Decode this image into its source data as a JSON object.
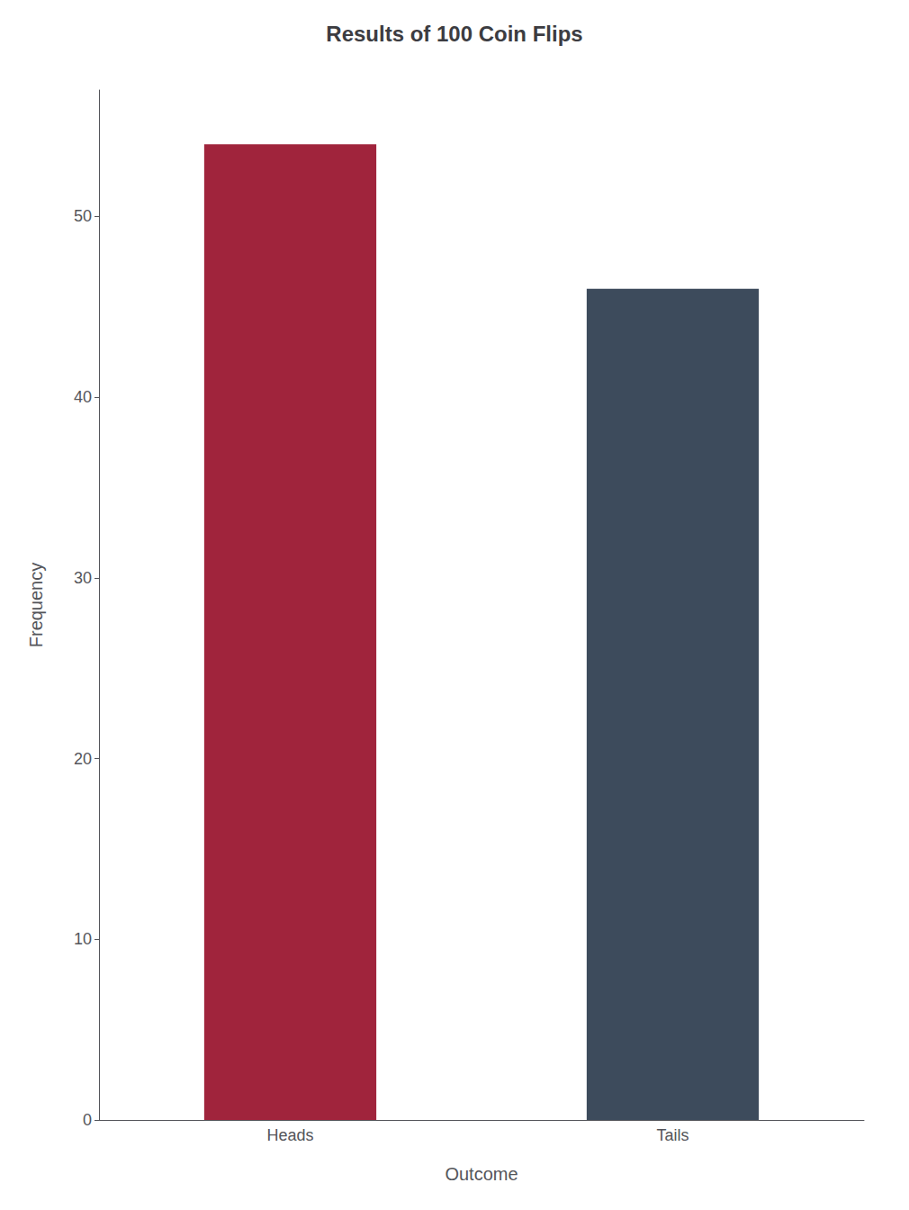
{
  "chart_data": {
    "type": "bar",
    "title": "Results of 100 Coin Flips",
    "xlabel": "Outcome",
    "ylabel": "Frequency",
    "categories": [
      "Heads",
      "Tails"
    ],
    "values": [
      54,
      46
    ],
    "colors": [
      "#A0243C",
      "#3D4B5C"
    ],
    "ylim": [
      0,
      57
    ],
    "yticks": [
      0,
      10,
      20,
      30,
      40,
      50
    ],
    "grid": false
  }
}
